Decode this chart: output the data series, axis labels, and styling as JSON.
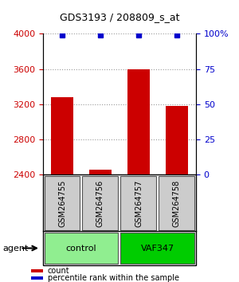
{
  "title": "GDS3193 / 208809_s_at",
  "samples": [
    "GSM264755",
    "GSM264756",
    "GSM264757",
    "GSM264758"
  ],
  "counts": [
    3280,
    2460,
    3600,
    3180
  ],
  "percentile_ranks": [
    99,
    99,
    99,
    99
  ],
  "ylim_left": [
    2400,
    4000
  ],
  "ylim_right": [
    0,
    100
  ],
  "yticks_left": [
    2400,
    2800,
    3200,
    3600,
    4000
  ],
  "yticks_right": [
    0,
    25,
    50,
    75,
    100
  ],
  "bar_color": "#cc0000",
  "dot_color": "#0000cc",
  "bar_width": 0.6,
  "groups": [
    {
      "label": "control",
      "samples": [
        0,
        1
      ],
      "color": "#90ee90"
    },
    {
      "label": "VAF347",
      "samples": [
        2,
        3
      ],
      "color": "#00cc00"
    }
  ],
  "agent_label": "agent",
  "legend_count_label": "count",
  "legend_pct_label": "percentile rank within the sample",
  "grid_color": "#999999",
  "sample_box_color": "#cccccc",
  "sample_box_edge": "#555555"
}
